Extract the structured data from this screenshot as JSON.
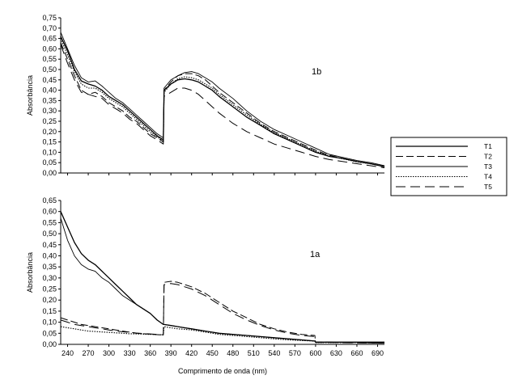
{
  "styles": {
    "T1": {
      "dash": "",
      "width": 1.3,
      "color": "#000000"
    },
    "T2": {
      "dash": "9,4",
      "width": 1.0,
      "color": "#000000"
    },
    "T3": {
      "dash": "",
      "width": 0.9,
      "color": "#000000"
    },
    "T4": {
      "dash": "1.5,1.5",
      "width": 1.1,
      "color": "#000000"
    },
    "T5": {
      "dash": "12,6",
      "width": 1.0,
      "color": "#000000"
    }
  },
  "legend": {
    "placement": "right, between panels",
    "items": [
      "T1",
      "T2",
      "T3",
      "T4",
      "T5"
    ]
  },
  "chart_data": [
    {
      "type": "line",
      "panel_label": "1b",
      "ylabel": "Absorbância",
      "xlabel": "",
      "xlim": [
        230,
        700
      ],
      "ylim": [
        0,
        0.75
      ],
      "yticks": [
        "0,00",
        "0,05",
        "0,10",
        "0,15",
        "0,20",
        "0,25",
        "0,30",
        "0,35",
        "0,40",
        "0,45",
        "0,50",
        "0,55",
        "0,60",
        "0,65",
        "0,70",
        "0,75"
      ],
      "xticks": [],
      "series": [
        {
          "name": "T1",
          "x": [
            230,
            240,
            250,
            260,
            270,
            280,
            290,
            300,
            310,
            320,
            330,
            340,
            350,
            360,
            370,
            379,
            380,
            390,
            400,
            410,
            420,
            430,
            440,
            450,
            460,
            480,
            500,
            520,
            540,
            560,
            580,
            600,
            620,
            640,
            660,
            680,
            700
          ],
          "y": [
            0.66,
            0.59,
            0.5,
            0.445,
            0.43,
            0.42,
            0.4,
            0.37,
            0.35,
            0.33,
            0.3,
            0.27,
            0.24,
            0.21,
            0.18,
            0.16,
            0.4,
            0.43,
            0.45,
            0.455,
            0.45,
            0.44,
            0.42,
            0.4,
            0.37,
            0.32,
            0.27,
            0.23,
            0.19,
            0.16,
            0.13,
            0.1,
            0.08,
            0.07,
            0.055,
            0.045,
            0.03
          ]
        },
        {
          "name": "T2",
          "x": [
            230,
            240,
            250,
            260,
            270,
            280,
            290,
            300,
            310,
            320,
            330,
            340,
            350,
            360,
            370,
            379,
            380,
            390,
            400,
            410,
            420,
            430,
            440,
            450,
            460,
            480,
            500,
            520,
            540,
            560,
            580,
            600,
            620,
            640,
            660,
            680,
            700
          ],
          "y": [
            0.63,
            0.55,
            0.47,
            0.4,
            0.38,
            0.39,
            0.37,
            0.34,
            0.32,
            0.3,
            0.27,
            0.25,
            0.22,
            0.19,
            0.17,
            0.15,
            0.4,
            0.44,
            0.47,
            0.48,
            0.48,
            0.47,
            0.45,
            0.42,
            0.39,
            0.34,
            0.29,
            0.24,
            0.2,
            0.17,
            0.14,
            0.11,
            0.085,
            0.07,
            0.055,
            0.045,
            0.03
          ]
        },
        {
          "name": "T3",
          "x": [
            230,
            240,
            250,
            260,
            270,
            280,
            290,
            300,
            310,
            320,
            330,
            340,
            350,
            360,
            370,
            379,
            380,
            390,
            400,
            410,
            420,
            430,
            440,
            450,
            460,
            480,
            500,
            520,
            540,
            560,
            580,
            600,
            620,
            640,
            660,
            680,
            700
          ],
          "y": [
            0.68,
            0.6,
            0.52,
            0.46,
            0.44,
            0.445,
            0.42,
            0.39,
            0.36,
            0.34,
            0.31,
            0.28,
            0.25,
            0.22,
            0.19,
            0.17,
            0.41,
            0.45,
            0.47,
            0.485,
            0.49,
            0.48,
            0.46,
            0.44,
            0.41,
            0.36,
            0.3,
            0.25,
            0.21,
            0.18,
            0.15,
            0.12,
            0.09,
            0.075,
            0.06,
            0.05,
            0.035
          ]
        },
        {
          "name": "T4",
          "x": [
            230,
            240,
            250,
            260,
            270,
            280,
            290,
            300,
            310,
            320,
            330,
            340,
            350,
            360,
            370,
            379,
            380,
            390,
            400,
            410,
            420,
            430,
            440,
            450,
            460,
            480,
            500,
            520,
            540,
            560,
            580,
            600,
            620,
            640,
            660,
            680,
            700
          ],
          "y": [
            0.65,
            0.57,
            0.49,
            0.43,
            0.41,
            0.41,
            0.39,
            0.36,
            0.34,
            0.32,
            0.29,
            0.26,
            0.23,
            0.2,
            0.175,
            0.155,
            0.39,
            0.43,
            0.455,
            0.465,
            0.46,
            0.45,
            0.43,
            0.41,
            0.38,
            0.33,
            0.28,
            0.235,
            0.195,
            0.165,
            0.135,
            0.105,
            0.082,
            0.068,
            0.054,
            0.044,
            0.03
          ]
        },
        {
          "name": "T5",
          "x": [
            230,
            240,
            250,
            260,
            270,
            280,
            290,
            300,
            310,
            320,
            330,
            340,
            350,
            360,
            370,
            379,
            380,
            390,
            400,
            410,
            420,
            430,
            440,
            450,
            460,
            480,
            500,
            520,
            540,
            560,
            580,
            600,
            620,
            640,
            660,
            680,
            700
          ],
          "y": [
            0.62,
            0.53,
            0.45,
            0.39,
            0.38,
            0.37,
            0.36,
            0.33,
            0.31,
            0.29,
            0.26,
            0.24,
            0.21,
            0.18,
            0.16,
            0.14,
            0.37,
            0.39,
            0.41,
            0.41,
            0.4,
            0.38,
            0.35,
            0.32,
            0.29,
            0.24,
            0.2,
            0.17,
            0.14,
            0.12,
            0.1,
            0.08,
            0.065,
            0.055,
            0.045,
            0.035,
            0.025
          ]
        }
      ]
    },
    {
      "type": "line",
      "panel_label": "1a",
      "ylabel": "Absorbância",
      "xlabel": "Comprimento de onda (nm)",
      "xlim": [
        230,
        700
      ],
      "ylim": [
        0,
        0.65
      ],
      "yticks": [
        "0,00",
        "0,05",
        "0,10",
        "0,15",
        "0,20",
        "0,25",
        "0,30",
        "0,35",
        "0,40",
        "0,45",
        "0,50",
        "0,55",
        "0,60",
        "0,65"
      ],
      "xticks": [
        240,
        270,
        300,
        330,
        360,
        390,
        420,
        450,
        480,
        510,
        540,
        570,
        600,
        630,
        660,
        690
      ],
      "series": [
        {
          "name": "T1",
          "x": [
            230,
            240,
            250,
            260,
            270,
            280,
            290,
            300,
            310,
            320,
            330,
            340,
            350,
            360,
            370,
            379,
            380,
            390,
            400,
            410,
            420,
            440,
            460,
            480,
            500,
            520,
            540,
            560,
            580,
            599,
            600,
            620,
            650,
            700
          ],
          "y": [
            0.6,
            0.53,
            0.46,
            0.41,
            0.38,
            0.36,
            0.33,
            0.3,
            0.27,
            0.24,
            0.21,
            0.18,
            0.16,
            0.14,
            0.11,
            0.09,
            0.09,
            0.085,
            0.08,
            0.075,
            0.07,
            0.06,
            0.05,
            0.045,
            0.04,
            0.035,
            0.03,
            0.025,
            0.02,
            0.015,
            0.01,
            0.01,
            0.01,
            0.01
          ]
        },
        {
          "name": "T2",
          "x": [
            230,
            240,
            250,
            260,
            270,
            280,
            290,
            300,
            310,
            320,
            330,
            340,
            350,
            360,
            370,
            379,
            380,
            390,
            400,
            410,
            420,
            440,
            460,
            480,
            500,
            520,
            540,
            560,
            580,
            599,
            600,
            620,
            650,
            700
          ],
          "y": [
            0.12,
            0.11,
            0.1,
            0.09,
            0.085,
            0.08,
            0.075,
            0.07,
            0.065,
            0.06,
            0.055,
            0.05,
            0.048,
            0.046,
            0.044,
            0.042,
            0.28,
            0.285,
            0.28,
            0.27,
            0.26,
            0.23,
            0.19,
            0.15,
            0.12,
            0.09,
            0.07,
            0.055,
            0.045,
            0.04,
            0.01,
            0.01,
            0.008,
            0.005
          ]
        },
        {
          "name": "T3",
          "x": [
            230,
            240,
            250,
            260,
            270,
            280,
            290,
            300,
            310,
            320,
            330,
            340,
            350,
            360,
            370,
            379,
            380,
            390,
            400,
            410,
            420,
            440,
            460,
            480,
            500,
            520,
            540,
            560,
            580,
            599,
            600,
            620,
            650,
            700
          ],
          "y": [
            0.57,
            0.47,
            0.4,
            0.36,
            0.34,
            0.33,
            0.3,
            0.28,
            0.25,
            0.22,
            0.2,
            0.18,
            0.16,
            0.14,
            0.11,
            0.09,
            0.09,
            0.085,
            0.08,
            0.075,
            0.07,
            0.06,
            0.05,
            0.045,
            0.04,
            0.035,
            0.03,
            0.025,
            0.02,
            0.015,
            0.01,
            0.01,
            0.01,
            0.01
          ]
        },
        {
          "name": "T4",
          "x": [
            230,
            240,
            250,
            260,
            270,
            280,
            290,
            300,
            310,
            320,
            330,
            340,
            350,
            360,
            370,
            379,
            380,
            390,
            400,
            410,
            420,
            440,
            460,
            480,
            500,
            520,
            540,
            560,
            580,
            599,
            600,
            620,
            650,
            700
          ],
          "y": [
            0.08,
            0.075,
            0.07,
            0.065,
            0.06,
            0.058,
            0.056,
            0.054,
            0.052,
            0.05,
            0.048,
            0.047,
            0.046,
            0.045,
            0.044,
            0.043,
            0.08,
            0.075,
            0.07,
            0.068,
            0.065,
            0.055,
            0.045,
            0.04,
            0.035,
            0.03,
            0.025,
            0.02,
            0.017,
            0.015,
            0.008,
            0.008,
            0.008,
            0.008
          ]
        },
        {
          "name": "T5",
          "x": [
            230,
            240,
            250,
            260,
            270,
            280,
            290,
            300,
            310,
            320,
            330,
            340,
            350,
            360,
            370,
            379,
            380,
            390,
            400,
            410,
            420,
            440,
            460,
            480,
            500,
            520,
            540,
            560,
            580,
            599,
            600,
            620,
            650,
            700
          ],
          "y": [
            0.11,
            0.1,
            0.09,
            0.085,
            0.08,
            0.075,
            0.07,
            0.065,
            0.06,
            0.057,
            0.054,
            0.051,
            0.049,
            0.047,
            0.045,
            0.043,
            0.27,
            0.275,
            0.27,
            0.26,
            0.25,
            0.22,
            0.18,
            0.14,
            0.11,
            0.085,
            0.065,
            0.05,
            0.04,
            0.035,
            0.008,
            0.008,
            0.007,
            0.005
          ]
        }
      ]
    }
  ]
}
